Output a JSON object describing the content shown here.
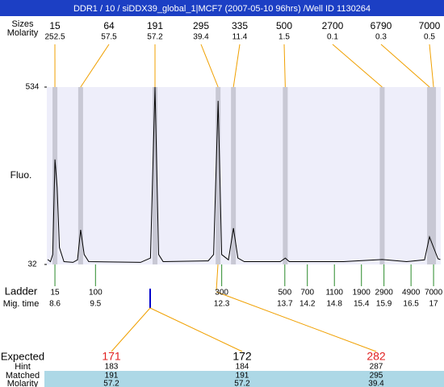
{
  "header": {
    "title": "DDR1 / 10 / siDDX39_global_1|MCF7 (2007-05-10 96hrs) /Well ID 1130264"
  },
  "chart_data": {
    "type": "line",
    "ylabel": "Fluo.",
    "x": [
      8.44,
      8.5,
      8.55,
      8.6,
      8.65,
      8.7,
      8.8,
      9.0,
      9.1,
      9.17,
      9.25,
      9.35,
      10.5,
      10.72,
      10.82,
      10.9,
      11.0,
      12.0,
      12.12,
      12.22,
      12.3,
      12.45,
      12.56,
      12.66,
      12.8,
      13.6,
      13.71,
      13.8,
      15.0,
      15.86,
      16.4,
      16.8,
      16.91,
      17.0,
      17.1,
      17.15
    ],
    "values": [
      46,
      40,
      60,
      329,
      250,
      80,
      40,
      38,
      45,
      130,
      60,
      40,
      38,
      50,
      534,
      60,
      40,
      42,
      60,
      495,
      60,
      45,
      135,
      50,
      40,
      40,
      50,
      40,
      40,
      46,
      40,
      45,
      110,
      80,
      48,
      46
    ],
    "xlim": [
      8.42,
      17.16
    ],
    "ylim": [
      32,
      534
    ],
    "yticks": [
      32,
      534
    ],
    "color": "#000000"
  },
  "peaks": {
    "size_label": "Sizes",
    "molarity_label": "Molarity",
    "sizes": [
      15,
      64,
      191,
      295,
      335,
      500,
      2700,
      6790,
      7000
    ],
    "molarity": [
      252.5,
      57.5,
      57.2,
      39.4,
      11.4,
      1.5,
      0.1,
      0.3,
      0.5
    ],
    "times": [
      8.6,
      9.17,
      10.82,
      12.22,
      12.56,
      13.71,
      15.86,
      16.91,
      17.0
    ]
  },
  "ladder": {
    "label": "Ladder",
    "time_label": "Mig. time",
    "sizes": [
      15,
      100,
      300,
      500,
      700,
      1100,
      1900,
      2900,
      4900,
      7000
    ],
    "times": [
      8.6,
      9.5,
      12.3,
      13.7,
      14.2,
      14.8,
      15.4,
      15.9,
      16.5,
      17
    ]
  },
  "expected": {
    "label": "Expected",
    "row_labels": {
      "hint": "Hint",
      "matched": "Matched",
      "molarity": "Molarity"
    },
    "columns": [
      {
        "expected": 171,
        "color": "#e02020",
        "hint": 183,
        "matched": 191,
        "molarity": 57.2
      },
      {
        "expected": 172,
        "color": "#000000",
        "hint": 184,
        "matched": 191,
        "molarity": 57.2
      },
      {
        "expected": 282,
        "color": "#e02020",
        "hint": 287,
        "matched": 295,
        "molarity": 39.4
      }
    ]
  }
}
